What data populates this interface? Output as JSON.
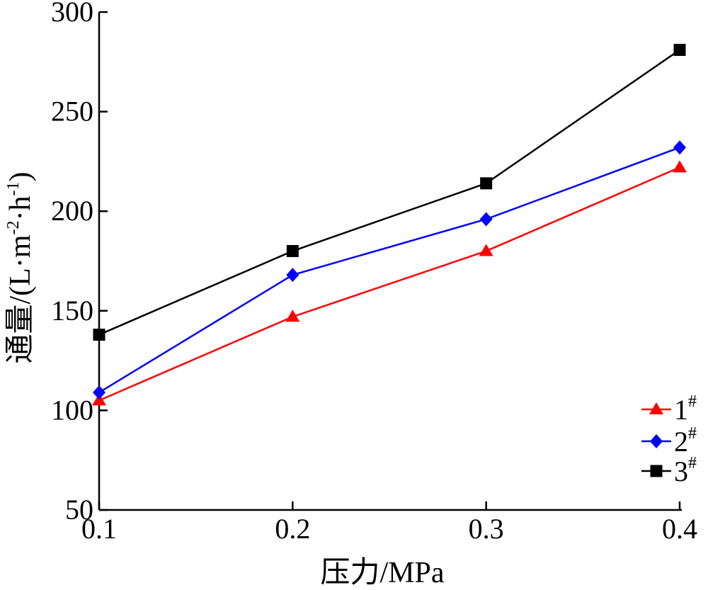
{
  "chart_data": {
    "type": "line",
    "x": [
      0.1,
      0.2,
      0.3,
      0.4
    ],
    "x_tick_labels": [
      "0.1",
      "0.2",
      "0.3",
      "0.4"
    ],
    "xlabel": "压力/MPa",
    "ylabel_main": "通量/(L·m",
    "ylabel_sup1": "-2",
    "ylabel_mid": "·h",
    "ylabel_sup2": "-1",
    "ylabel_end": ")",
    "xlim": [
      0.1,
      0.4
    ],
    "ylim": [
      50,
      300
    ],
    "y_ticks": [
      50,
      100,
      150,
      200,
      250,
      300
    ],
    "y_tick_labels": [
      "50",
      "100",
      "150",
      "200",
      "250",
      "300"
    ],
    "grid": false,
    "legend_position": "bottom-right",
    "series": [
      {
        "name": "1",
        "name_sup": "#",
        "color": "#ff0000",
        "marker": "triangle",
        "values": [
          105,
          147,
          180,
          222
        ]
      },
      {
        "name": "2",
        "name_sup": "#",
        "color": "#0000ff",
        "marker": "diamond",
        "values": [
          109,
          168,
          196,
          232
        ]
      },
      {
        "name": "3",
        "name_sup": "#",
        "color": "#000000",
        "marker": "square",
        "values": [
          138,
          180,
          214,
          281
        ]
      }
    ]
  }
}
